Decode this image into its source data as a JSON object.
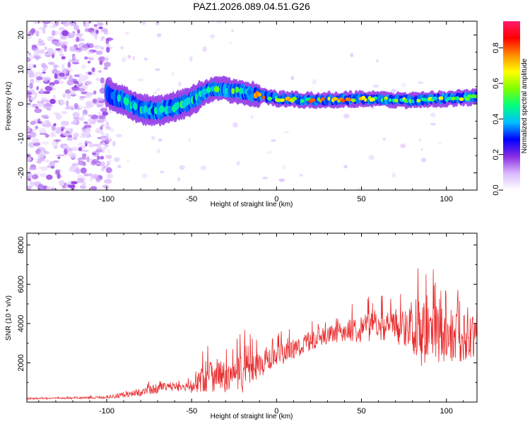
{
  "figure": {
    "title": "PAZ1.2026.089.04.51.G26"
  },
  "chart_data": [
    {
      "type": "heatmap",
      "title": "PAZ1.2026.089.04.51.G26",
      "xlabel": "Height of straight line (km)",
      "ylabel": "Frequency (Hz)",
      "xlim": [
        -147,
        118
      ],
      "ylim": [
        -25,
        24
      ],
      "xticks": [
        -100,
        -50,
        0,
        50,
        100
      ],
      "xtick_labels": [
        "-100",
        "-50",
        "0",
        "50",
        "100"
      ],
      "yticks": [
        -20,
        -10,
        0,
        10,
        20
      ],
      "ytick_labels": [
        "-20",
        "-10",
        "0",
        "10",
        "20"
      ],
      "colorbar": {
        "label": "Normalized spectral amplitude",
        "range": [
          0,
          0.95
        ],
        "ticks": [
          0.0,
          0.2,
          0.4,
          0.6,
          0.8
        ],
        "tick_labels": [
          "0.0",
          "0.2",
          "0.4",
          "0.6",
          "0.8"
        ],
        "colors": [
          "#ffffff",
          "#d9b8ff",
          "#8a2be2",
          "#0000ff",
          "#00bfff",
          "#00ff7f",
          "#7fff00",
          "#ffff00",
          "#ff8c00",
          "#ff0000",
          "#ff1a6e"
        ]
      },
      "ridge": {
        "description_points": [
          {
            "x": -100,
            "f": 3
          },
          {
            "x": -90,
            "f": 1
          },
          {
            "x": -80,
            "f": -1.5
          },
          {
            "x": -70,
            "f": -2
          },
          {
            "x": -60,
            "f": -1
          },
          {
            "x": -50,
            "f": 1
          },
          {
            "x": -42,
            "f": 3.5
          },
          {
            "x": -35,
            "f": 4.5
          },
          {
            "x": -28,
            "f": 4
          },
          {
            "x": -20,
            "f": 3.5
          },
          {
            "x": -10,
            "f": 2.5
          },
          {
            "x": 0,
            "f": 1.5
          },
          {
            "x": 20,
            "f": 1
          },
          {
            "x": 50,
            "f": 1.5
          },
          {
            "x": 80,
            "f": 1
          },
          {
            "x": 100,
            "f": 1.5
          },
          {
            "x": 118,
            "f": 2
          }
        ],
        "x_start": -100,
        "x_end": 118
      },
      "noise_region": {
        "x_from": -147,
        "x_to": -100,
        "density": "high"
      }
    },
    {
      "type": "line",
      "title": "",
      "xlabel": "Height of straight line (km)",
      "ylabel": "SNR (10 * v/v)",
      "xlim": [
        -147,
        118
      ],
      "ylim": [
        0,
        8600
      ],
      "xticks": [
        -100,
        -50,
        0,
        50,
        100
      ],
      "xtick_labels": [
        "-100",
        "-50",
        "0",
        "50",
        "100"
      ],
      "yticks": [
        2000,
        4000,
        6000,
        8000
      ],
      "ytick_labels": [
        "2000",
        "4000",
        "6000",
        "8000"
      ],
      "series": [
        {
          "name": "SNR",
          "color": "#e8292b",
          "envelope_x": [
            -147,
            -120,
            -100,
            -90,
            -80,
            -70,
            -60,
            -50,
            -45,
            -40,
            -35,
            -30,
            -25,
            -20,
            -15,
            -10,
            -5,
            0,
            10,
            20,
            30,
            40,
            50,
            60,
            70,
            80,
            85,
            90,
            100,
            110,
            118
          ],
          "envelope_mean": [
            180,
            200,
            250,
            350,
            500,
            700,
            800,
            700,
            1100,
            1400,
            1500,
            1200,
            1300,
            1500,
            1700,
            1900,
            2100,
            2300,
            2700,
            3100,
            3400,
            3600,
            3800,
            3900,
            3800,
            3800,
            3700,
            3500,
            3400,
            3300,
            3300
          ],
          "envelope_amp": [
            80,
            80,
            120,
            250,
            350,
            450,
            400,
            500,
            1200,
            1800,
            1600,
            1400,
            1500,
            2000,
            1500,
            1200,
            1100,
            1000,
            1000,
            900,
            800,
            900,
            1400,
            1300,
            1500,
            2200,
            3400,
            2800,
            2500,
            2300,
            1800
          ]
        }
      ]
    }
  ]
}
